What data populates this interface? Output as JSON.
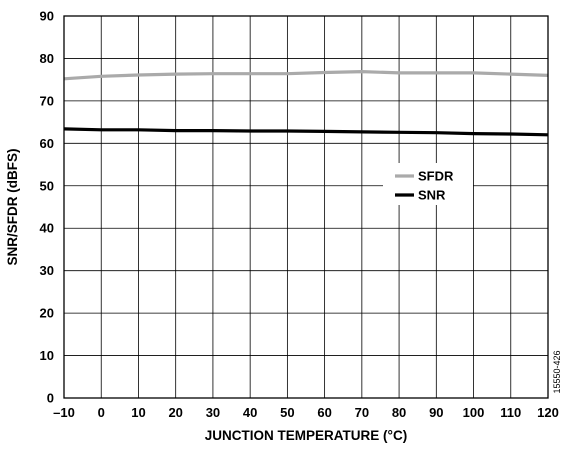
{
  "chart_data": {
    "type": "line",
    "xlabel": "JUNCTION TEMPERATURE (°C)",
    "ylabel": "SNR/SFDR (dBFS)",
    "xlim": [
      -10,
      120
    ],
    "ylim": [
      0,
      90
    ],
    "x_ticks": [
      -10,
      0,
      10,
      20,
      30,
      40,
      50,
      60,
      70,
      80,
      90,
      100,
      110,
      120
    ],
    "x_tick_labels": [
      "–10",
      "0",
      "10",
      "20",
      "30",
      "40",
      "50",
      "60",
      "70",
      "80",
      "90",
      "100",
      "110",
      "120"
    ],
    "y_ticks": [
      0,
      10,
      20,
      30,
      40,
      50,
      60,
      70,
      80,
      90
    ],
    "grid": true,
    "legend_position": "right",
    "series": [
      {
        "name": "SFDR",
        "color": "#aaaaaa",
        "x": [
          -10,
          0,
          10,
          20,
          30,
          40,
          50,
          60,
          70,
          80,
          90,
          100,
          110,
          120
        ],
        "values": [
          75.2,
          75.8,
          76.1,
          76.3,
          76.4,
          76.4,
          76.4,
          76.7,
          76.9,
          76.6,
          76.6,
          76.6,
          76.3,
          76.0
        ]
      },
      {
        "name": "SNR",
        "color": "#000000",
        "x": [
          -10,
          0,
          10,
          20,
          30,
          40,
          50,
          60,
          70,
          80,
          90,
          100,
          110,
          120
        ],
        "values": [
          63.4,
          63.2,
          63.2,
          63.0,
          63.0,
          62.9,
          62.9,
          62.8,
          62.7,
          62.6,
          62.5,
          62.3,
          62.2,
          62.0
        ]
      }
    ]
  },
  "figure_id": "15550-426"
}
